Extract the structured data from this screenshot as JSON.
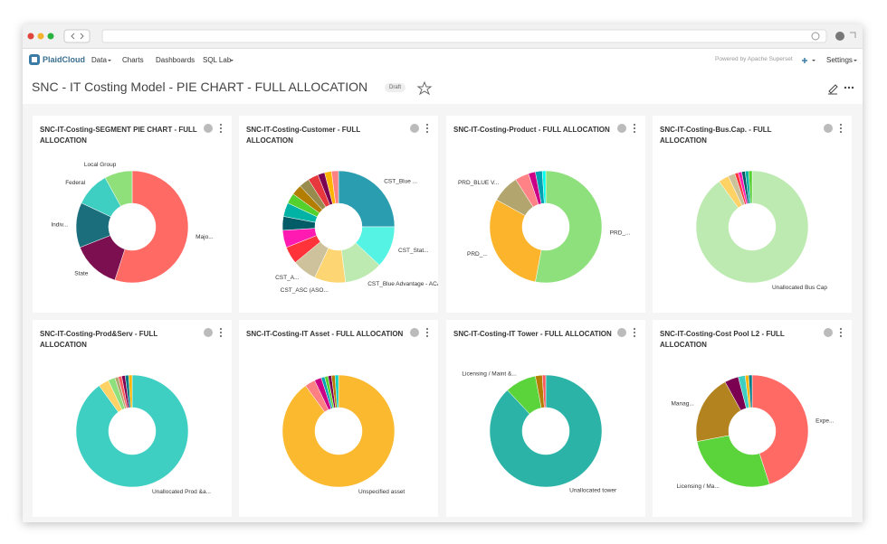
{
  "nav": {
    "brand": "PlaidCloud",
    "items": [
      "Data",
      "Charts",
      "Dashboards",
      "SQL Lab"
    ],
    "powered": "Powered by Apache Superset",
    "settings": "Settings"
  },
  "dashboard": {
    "title": "SNC - IT Costing Model - PIE CHART - FULL ALLOCATION",
    "status": "Draft"
  },
  "chart_data": [
    {
      "type": "pie",
      "donut": true,
      "title": "SNC-IT-Costing-SEGMENT PIE CHART - FULL ALLOCATION",
      "categories": [
        "Majo...",
        "State",
        "Indiv...",
        "Federal",
        "Local Group"
      ],
      "values": [
        55,
        14,
        13,
        10,
        8
      ],
      "colors": [
        "#ff6a64",
        "#7b0f4f",
        "#1b6f7d",
        "#3ecfc2",
        "#8fe07a"
      ]
    },
    {
      "type": "pie",
      "donut": true,
      "title": "SNC-IT-Costing-Customer - FULL ALLOCATION",
      "categories": [
        "CST_Blue ...",
        "CST_Stat...",
        "CST_Blue Advantage - ACA",
        "CST_ASC (ASO...",
        "CST_A...",
        null,
        null,
        null,
        null,
        null,
        null,
        null,
        null,
        null,
        null,
        null
      ],
      "values": [
        25,
        12,
        11,
        9,
        7,
        5,
        5,
        4,
        4,
        3,
        3,
        3,
        3,
        2,
        2,
        2
      ],
      "colors": [
        "#2a9db0",
        "#55f3e4",
        "#bdeab0",
        "#fdd673",
        "#cdc29b",
        "#ff3339",
        "#ff1ab1",
        "#005c66",
        "#00b3a5",
        "#55d12e",
        "#b37e00",
        "#988b4e",
        "#e6383d",
        "#7b0051",
        "#ffb400",
        "#ff8083"
      ]
    },
    {
      "type": "pie",
      "donut": true,
      "title": "SNC-IT-Costing-Product - FULL ALLOCATION",
      "categories": [
        "PRD_...",
        "PRD_...",
        "PRD_BLUE V...",
        null,
        null,
        null,
        null
      ],
      "values": [
        53,
        30,
        8,
        4,
        2,
        2,
        1
      ],
      "colors": [
        "#8ee07c",
        "#fbb42c",
        "#b2a56e",
        "#ff8386",
        "#cc0086",
        "#00a1b3",
        "#00ffeb"
      ]
    },
    {
      "type": "pie",
      "donut": true,
      "title": "SNC-IT-Costing-Bus.Cap. - FULL ALLOCATION",
      "categories": [
        "Unallocated Bus Cap",
        null,
        null,
        null,
        null,
        null,
        null,
        null
      ],
      "values": [
        90,
        3,
        2,
        1,
        1,
        1,
        1,
        1
      ],
      "colors": [
        "#bdeab0",
        "#ffd266",
        "#cbc29a",
        "#ff3339",
        "#ff1ab1",
        "#005c66",
        "#00b3a5",
        "#55d12e"
      ]
    },
    {
      "type": "pie",
      "donut": true,
      "title": "SNC-IT-Costing-Prod&Serv - FULL ALLOCATION",
      "categories": [
        "Unallocated Prod &a...",
        null,
        null,
        null,
        null,
        null,
        null,
        null
      ],
      "values": [
        90,
        3,
        2,
        1,
        1,
        1,
        1,
        1
      ],
      "colors": [
        "#3ecfc2",
        "#ffd266",
        "#8ee07c",
        "#b2a56e",
        "#ff5a5f",
        "#7b0051",
        "#007a87",
        "#ffb400"
      ]
    },
    {
      "type": "pie",
      "donut": true,
      "title": "SNC-IT-Costing-IT Asset - FULL ALLOCATION",
      "categories": [
        "Unspecified asset",
        null,
        null,
        null,
        null,
        null,
        null,
        null
      ],
      "values": [
        90,
        3,
        2,
        1,
        1,
        1,
        1,
        1
      ],
      "colors": [
        "#fbb92f",
        "#ff8083",
        "#cc0086",
        "#00a1b3",
        "#55d12e",
        "#7b0051",
        "#b37e00",
        "#00d1c1"
      ]
    },
    {
      "type": "pie",
      "donut": true,
      "title": "SNC-IT-Costing-IT Tower - FULL ALLOCATION",
      "categories": [
        "Unallocated tower",
        "Licensing / Maint &...",
        null,
        null
      ],
      "values": [
        88,
        9,
        2,
        1
      ],
      "colors": [
        "#2bb3a7",
        "#5ad43a",
        "#b37e00",
        "#ff5a5f"
      ]
    },
    {
      "type": "pie",
      "donut": true,
      "title": "SNC-IT-Costing-Cost Pool L2 - FULL ALLOCATION",
      "categories": [
        "Expe...",
        "Licensing / Ma...",
        "Manag...",
        null,
        null,
        null,
        null
      ],
      "values": [
        45,
        27,
        20,
        4,
        2,
        1,
        1
      ],
      "colors": [
        "#ff6a64",
        "#5ad43a",
        "#b2831f",
        "#7b0051",
        "#3ecfc2",
        "#ffb400",
        "#007a87"
      ]
    }
  ]
}
